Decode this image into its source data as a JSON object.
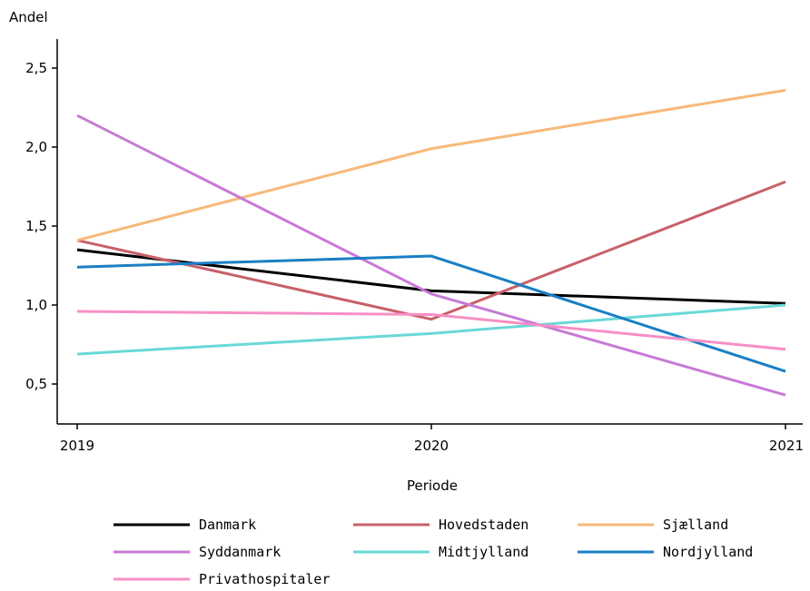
{
  "chart_data": {
    "type": "line",
    "title": "",
    "xlabel": "Periode",
    "ylabel": "Andel",
    "x": [
      2019,
      2020,
      2021
    ],
    "x_tick_labels": [
      "2019",
      "2020",
      "2021"
    ],
    "ylim": [
      0.25,
      2.7
    ],
    "y_ticks": [
      0.5,
      1.0,
      1.5,
      2.0,
      2.5
    ],
    "y_tick_labels": [
      "0,5",
      "1,0",
      "1,5",
      "2,0",
      "2,5"
    ],
    "grid": false,
    "legend_position": "bottom",
    "series": [
      {
        "name": "Danmark",
        "color": "#000000",
        "values": [
          1.35,
          1.09,
          1.01
        ]
      },
      {
        "name": "Hovedstaden",
        "color": "#c8606a",
        "values": [
          1.41,
          0.91,
          1.78
        ]
      },
      {
        "name": "Sjælland",
        "color": "#f7b97a",
        "values": [
          1.41,
          1.99,
          2.36
        ]
      },
      {
        "name": "Syddanmark",
        "color": "#c77ad6",
        "values": [
          2.2,
          1.07,
          0.43
        ]
      },
      {
        "name": "Midtjylland",
        "color": "#6ad8d8",
        "values": [
          0.69,
          0.82,
          1.0
        ]
      },
      {
        "name": "Nordjylland",
        "color": "#1a7fc4",
        "values": [
          1.24,
          1.31,
          0.58
        ]
      },
      {
        "name": "Privathospitaler",
        "color": "#f78fc6",
        "values": [
          0.96,
          0.94,
          0.72
        ]
      }
    ]
  }
}
